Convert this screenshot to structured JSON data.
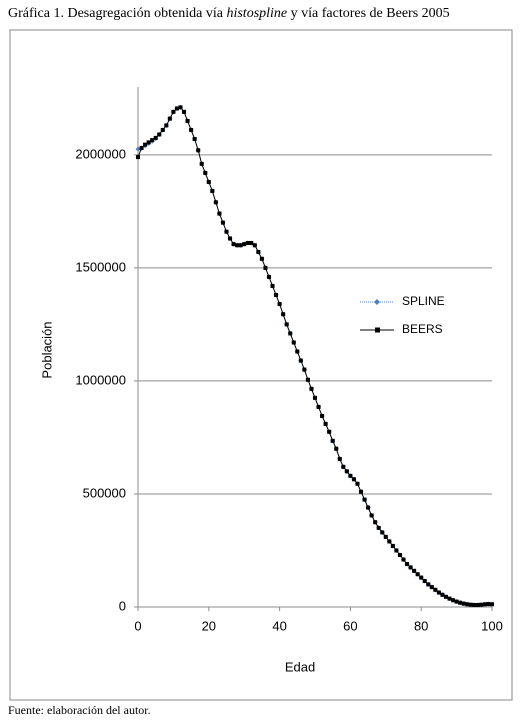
{
  "chart_data": {
    "type": "line",
    "title_parts": [
      "Gráfica 1. Desagregación obtenida vía ",
      "histospline",
      " y vía factores de Beers 2005"
    ],
    "source": "Fuente: elaboración del autor.",
    "xlabel": "Edad",
    "ylabel": "Población",
    "x": [
      0,
      1,
      2,
      3,
      4,
      5,
      6,
      7,
      8,
      9,
      10,
      11,
      12,
      13,
      14,
      15,
      16,
      17,
      18,
      19,
      20,
      21,
      22,
      23,
      24,
      25,
      26,
      27,
      28,
      29,
      30,
      31,
      32,
      33,
      34,
      35,
      36,
      37,
      38,
      39,
      40,
      41,
      42,
      43,
      44,
      45,
      46,
      47,
      48,
      49,
      50,
      51,
      52,
      53,
      54,
      55,
      56,
      57,
      58,
      59,
      60,
      61,
      62,
      63,
      64,
      65,
      66,
      67,
      68,
      69,
      70,
      71,
      72,
      73,
      74,
      75,
      76,
      77,
      78,
      79,
      80,
      81,
      82,
      83,
      84,
      85,
      86,
      87,
      88,
      89,
      90,
      91,
      92,
      93,
      94,
      95,
      96,
      97,
      98,
      99,
      100
    ],
    "series": [
      {
        "name": "SPLINE",
        "color": "#4f81bd",
        "values": [
          2025000,
          2030000,
          2040000,
          2050000,
          2060000,
          2072000,
          2090000,
          2110000,
          2130000,
          2160000,
          2190000,
          2205000,
          2210000,
          2190000,
          2150000,
          2110000,
          2070000,
          2020000,
          1960000,
          1920000,
          1880000,
          1840000,
          1790000,
          1740000,
          1700000,
          1660000,
          1630000,
          1605000,
          1600000,
          1600000,
          1605000,
          1610000,
          1610000,
          1600000,
          1570000,
          1540000,
          1500000,
          1460000,
          1420000,
          1380000,
          1340000,
          1295000,
          1250000,
          1210000,
          1170000,
          1130000,
          1090000,
          1050000,
          1005000,
          965000,
          925000,
          885000,
          845000,
          810000,
          775000,
          735000,
          700000,
          655000,
          620000,
          600000,
          580000,
          565000,
          545000,
          510000,
          475000,
          440000,
          405000,
          375000,
          350000,
          330000,
          310000,
          290000,
          270000,
          250000,
          230000,
          210000,
          190000,
          175000,
          160000,
          145000,
          130000,
          115000,
          100000,
          88000,
          76000,
          64000,
          54000,
          45000,
          37000,
          30000,
          24000,
          19000,
          15000,
          12000,
          10000,
          9000,
          9000,
          10000,
          12000,
          13000,
          12000
        ]
      },
      {
        "name": "BEERS",
        "color": "#000000",
        "values": [
          1990000,
          2030000,
          2045000,
          2055000,
          2065000,
          2075000,
          2090000,
          2110000,
          2130000,
          2160000,
          2190000,
          2205000,
          2210000,
          2190000,
          2150000,
          2110000,
          2070000,
          2020000,
          1960000,
          1920000,
          1880000,
          1840000,
          1790000,
          1740000,
          1700000,
          1660000,
          1630000,
          1605000,
          1600000,
          1600000,
          1605000,
          1610000,
          1610000,
          1600000,
          1570000,
          1540000,
          1500000,
          1460000,
          1420000,
          1380000,
          1340000,
          1295000,
          1250000,
          1210000,
          1170000,
          1130000,
          1090000,
          1050000,
          1005000,
          965000,
          925000,
          885000,
          845000,
          810000,
          775000,
          735000,
          700000,
          655000,
          620000,
          600000,
          580000,
          565000,
          545000,
          510000,
          475000,
          440000,
          405000,
          375000,
          350000,
          330000,
          310000,
          290000,
          270000,
          250000,
          230000,
          210000,
          190000,
          175000,
          160000,
          145000,
          130000,
          115000,
          100000,
          88000,
          76000,
          64000,
          54000,
          45000,
          37000,
          30000,
          24000,
          19000,
          15000,
          12000,
          10000,
          9000,
          9000,
          10000,
          12000,
          13000,
          12000
        ]
      }
    ],
    "xlim": [
      0,
      100
    ],
    "xticks": [
      0,
      20,
      40,
      60,
      80,
      100
    ],
    "ylim": [
      0,
      2300000
    ],
    "yticks": [
      0,
      500000,
      1000000,
      1500000,
      2000000
    ],
    "grid": true,
    "legend": "right"
  }
}
